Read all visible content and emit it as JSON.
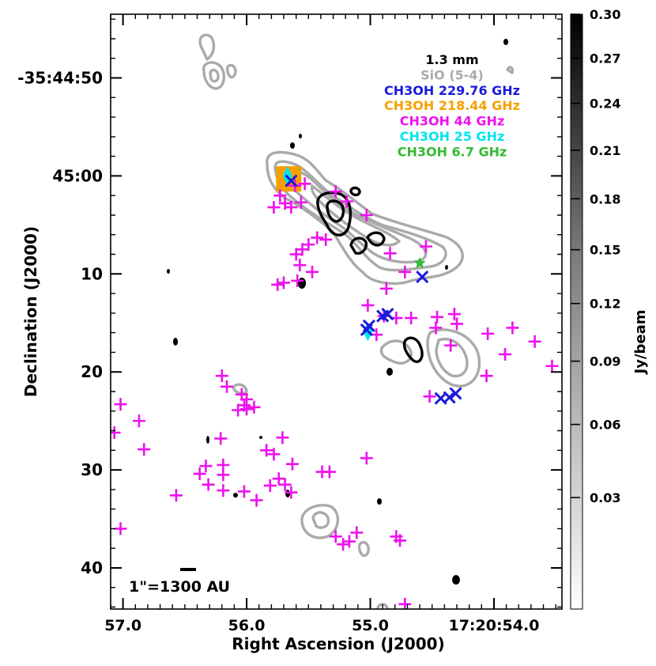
{
  "chart_data": {
    "type": "scatter",
    "xlabel": "Right Ascension (J2000)",
    "ylabel": "Declination (J2000)",
    "x_ticks": [
      {
        "ra_s": 57.0,
        "label": "57.0"
      },
      {
        "ra_s": 56.0,
        "label": "56.0"
      },
      {
        "ra_s": 55.0,
        "label": "55.0"
      },
      {
        "ra_s": 54.0,
        "label": "17:20:54.0"
      }
    ],
    "y_ticks": [
      {
        "dec_s": 50,
        "label": "-35:44:50"
      },
      {
        "dec_s": 60,
        "label": "45:00"
      },
      {
        "dec_s": 70,
        "label": "10"
      },
      {
        "dec_s": 80,
        "label": "20"
      },
      {
        "dec_s": 90,
        "label": "30"
      },
      {
        "dec_s": 100,
        "label": "40"
      }
    ],
    "xlim": [
      57.1,
      53.45
    ],
    "ylim": [
      104.2,
      43.5
    ],
    "colorbar": {
      "label": "Jy/beam",
      "range": [
        0.0,
        0.3
      ],
      "ticks": [
        "0.30",
        "0.27",
        "0.24",
        "0.21",
        "0.18",
        "0.15",
        "0.12",
        "0.09",
        "0.06",
        "0.03"
      ]
    },
    "legend": {
      "placement": "top-right",
      "entries": [
        {
          "name": "1.3 mm",
          "color": "#000000"
        },
        {
          "name": "SiO (5-4)",
          "color": "#aaaaaa"
        },
        {
          "name": "CH3OH 229.76 GHz",
          "color": "#1a1adc"
        },
        {
          "name": "CH3OH 218.44 GHz",
          "color": "#f5a000"
        },
        {
          "name": "CH3OH 44 GHz",
          "color": "#ee11ee"
        },
        {
          "name": "CH3OH 25 GHz",
          "color": "#00e5ee"
        },
        {
          "name": "CH3OH 6.7 GHz",
          "color": "#33bb33"
        }
      ]
    },
    "scalebar_label": "1\"=1300 AU",
    "series": [
      {
        "name": "CH3OH 44 GHz",
        "marker": "plus",
        "color": "#ee11ee",
        "points": [
          [
            55.61,
            61.0
          ],
          [
            55.53,
            60.8
          ],
          [
            55.73,
            62.0
          ],
          [
            55.69,
            62.8
          ],
          [
            55.56,
            62.7
          ],
          [
            55.64,
            63.2
          ],
          [
            55.28,
            61.6
          ],
          [
            55.19,
            62.6
          ],
          [
            55.03,
            64.0
          ],
          [
            55.78,
            63.2
          ],
          [
            55.43,
            66.3
          ],
          [
            55.36,
            66.5
          ],
          [
            55.5,
            67.0
          ],
          [
            55.55,
            67.5
          ],
          [
            55.6,
            68.0
          ],
          [
            55.57,
            69.1
          ],
          [
            55.47,
            69.8
          ],
          [
            55.59,
            70.7
          ],
          [
            55.7,
            70.9
          ],
          [
            55.75,
            71.1
          ],
          [
            54.84,
            67.9
          ],
          [
            54.55,
            67.2
          ],
          [
            54.72,
            69.8
          ],
          [
            54.87,
            71.5
          ],
          [
            55.02,
            73.2
          ],
          [
            54.89,
            74.3
          ],
          [
            54.95,
            76.2
          ],
          [
            54.79,
            74.5
          ],
          [
            54.67,
            74.5
          ],
          [
            54.46,
            74.4
          ],
          [
            54.32,
            74.1
          ],
          [
            54.3,
            75.1
          ],
          [
            54.47,
            75.5
          ],
          [
            54.35,
            77.3
          ],
          [
            54.05,
            76.1
          ],
          [
            53.67,
            76.9
          ],
          [
            53.85,
            75.5
          ],
          [
            53.91,
            78.2
          ],
          [
            53.53,
            79.4
          ],
          [
            54.06,
            80.4
          ],
          [
            54.52,
            82.5
          ],
          [
            56.2,
            80.4
          ],
          [
            56.16,
            81.5
          ],
          [
            56.04,
            82.3
          ],
          [
            56.0,
            82.8
          ],
          [
            56.02,
            83.4
          ],
          [
            56.0,
            83.8
          ],
          [
            56.07,
            83.9
          ],
          [
            55.94,
            83.6
          ],
          [
            57.02,
            83.3
          ],
          [
            57.07,
            86.2
          ],
          [
            56.87,
            85.0
          ],
          [
            56.83,
            87.9
          ],
          [
            56.57,
            92.6
          ],
          [
            56.38,
            90.4
          ],
          [
            56.33,
            89.6
          ],
          [
            56.31,
            91.5
          ],
          [
            56.19,
            90.5
          ],
          [
            56.19,
            89.5
          ],
          [
            56.21,
            86.8
          ],
          [
            56.19,
            92.1
          ],
          [
            56.02,
            92.2
          ],
          [
            55.92,
            93.1
          ],
          [
            55.71,
            86.7
          ],
          [
            55.78,
            88.4
          ],
          [
            55.84,
            88.0
          ],
          [
            55.81,
            91.6
          ],
          [
            55.74,
            90.9
          ],
          [
            55.69,
            91.5
          ],
          [
            55.64,
            92.3
          ],
          [
            55.63,
            89.4
          ],
          [
            55.39,
            90.2
          ],
          [
            55.33,
            90.2
          ],
          [
            55.03,
            88.8
          ],
          [
            57.02,
            96.0
          ],
          [
            55.28,
            96.8
          ],
          [
            55.22,
            97.6
          ],
          [
            55.17,
            97.3
          ],
          [
            55.11,
            96.4
          ],
          [
            54.79,
            96.8
          ],
          [
            54.76,
            97.2
          ],
          [
            54.72,
            103.7
          ]
        ]
      },
      {
        "name": "CH3OH 229.76 GHz",
        "marker": "cross",
        "color": "#1a1adc",
        "points": [
          [
            55.64,
            60.5
          ],
          [
            54.58,
            70.3
          ],
          [
            54.9,
            74.3
          ],
          [
            54.86,
            74.1
          ],
          [
            55.01,
            75.3
          ],
          [
            55.03,
            75.7
          ],
          [
            54.43,
            82.7
          ],
          [
            54.36,
            82.6
          ],
          [
            54.31,
            82.2
          ]
        ]
      },
      {
        "name": "CH3OH 25 GHz",
        "marker": "diamond",
        "color": "#00e5ee",
        "points": [
          [
            55.67,
            60.0
          ],
          [
            55.02,
            75.9
          ]
        ]
      },
      {
        "name": "CH3OH 218.44 GHz",
        "marker": "square",
        "color": "#f5a000",
        "points": [
          [
            55.66,
            60.3
          ]
        ]
      },
      {
        "name": "CH3OH 6.7 GHz",
        "marker": "star",
        "color": "#33bb33",
        "points": [
          [
            54.6,
            68.9
          ]
        ]
      }
    ]
  }
}
